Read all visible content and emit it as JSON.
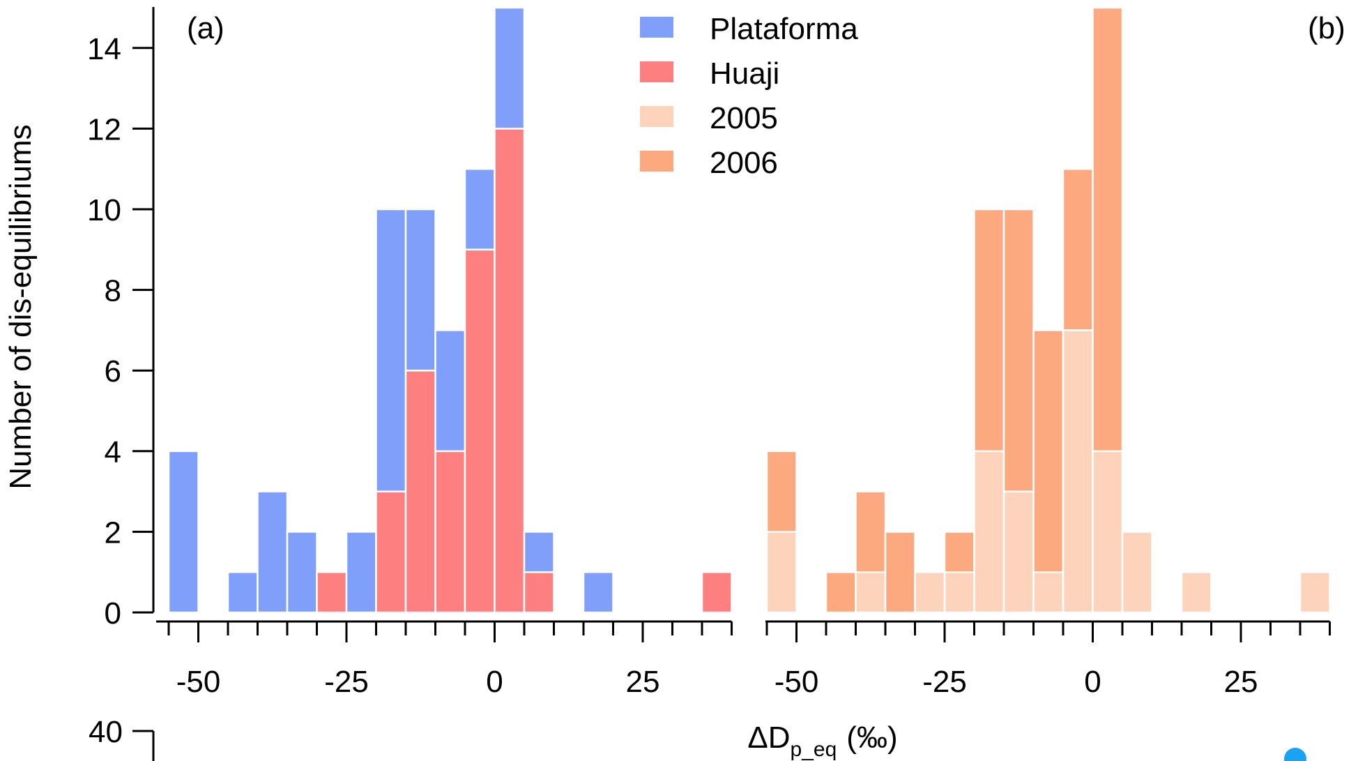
{
  "colors": {
    "plataforma": "#7f9ffb",
    "huaji": "#fd7f7f",
    "y2005": "#fdd3bc",
    "y2006": "#fca97f",
    "marker": "#1aa3f4",
    "axis": "#000000",
    "bar_edge": "#ffffff"
  },
  "figure": {
    "ylabel": "Number of dis-equilibriums",
    "xlabel_main": "ΔD",
    "xlabel_sub": "p_eq",
    "xlabel_unit": "(‰)",
    "lower_panel_top_tick": "40"
  },
  "chart_data": [
    {
      "type": "bar",
      "stacked": true,
      "panel_label": "(a)",
      "bin_width": 5,
      "x": [
        -52.5,
        -47.5,
        -42.5,
        -37.5,
        -32.5,
        -27.5,
        -22.5,
        -17.5,
        -12.5,
        -7.5,
        -2.5,
        2.5,
        7.5,
        12.5,
        17.5,
        22.5,
        27.5,
        32.5,
        37.5
      ],
      "series": [
        {
          "name": "Huaji",
          "color_key": "huaji",
          "values": [
            0,
            0,
            0,
            0,
            0,
            1,
            0,
            3,
            6,
            4,
            9,
            12,
            1,
            0,
            0,
            0,
            0,
            0,
            1
          ]
        },
        {
          "name": "Plataforma",
          "color_key": "plataforma",
          "values": [
            4,
            0,
            1,
            3,
            2,
            0,
            2,
            7,
            4,
            3,
            2,
            3,
            1,
            0,
            1,
            0,
            0,
            0,
            0
          ]
        }
      ],
      "xlim": [
        -55,
        40
      ],
      "ylim": [
        0,
        15
      ],
      "xticks": [
        -50,
        -25,
        0,
        25
      ],
      "xtick_labels": [
        "-50",
        "-25",
        "0",
        "25"
      ],
      "xminor_step": 5,
      "yticks": [
        0,
        2,
        4,
        6,
        8,
        10,
        12,
        14
      ],
      "ytick_labels": [
        "0",
        "2",
        "4",
        "6",
        "8",
        "10",
        "12",
        "14"
      ],
      "legend": [
        {
          "label": "Plataforma",
          "color_key": "plataforma"
        },
        {
          "label": "Huaji",
          "color_key": "huaji"
        },
        {
          "label": "2005",
          "color_key": "y2005"
        },
        {
          "label": "2006",
          "color_key": "y2006"
        }
      ],
      "legend_position": "top-center"
    },
    {
      "type": "bar",
      "stacked": true,
      "panel_label": "(b)",
      "bin_width": 5,
      "x": [
        -52.5,
        -47.5,
        -42.5,
        -37.5,
        -32.5,
        -27.5,
        -22.5,
        -17.5,
        -12.5,
        -7.5,
        -2.5,
        2.5,
        7.5,
        12.5,
        17.5,
        22.5,
        27.5,
        32.5,
        37.5
      ],
      "series": [
        {
          "name": "2005",
          "color_key": "y2005",
          "values": [
            2,
            0,
            0,
            1,
            0,
            1,
            1,
            4,
            3,
            1,
            7,
            4,
            2,
            0,
            1,
            0,
            0,
            0,
            1
          ]
        },
        {
          "name": "2006",
          "color_key": "y2006",
          "values": [
            2,
            0,
            1,
            2,
            2,
            0,
            1,
            6,
            7,
            6,
            4,
            11,
            0,
            0,
            0,
            0,
            0,
            0,
            0
          ]
        }
      ],
      "xlim": [
        -55,
        40
      ],
      "ylim": [
        0,
        15
      ],
      "xticks": [
        -50,
        -25,
        0,
        25
      ],
      "xtick_labels": [
        "-50",
        "-25",
        "0",
        "25"
      ],
      "xminor_step": 5
    }
  ]
}
